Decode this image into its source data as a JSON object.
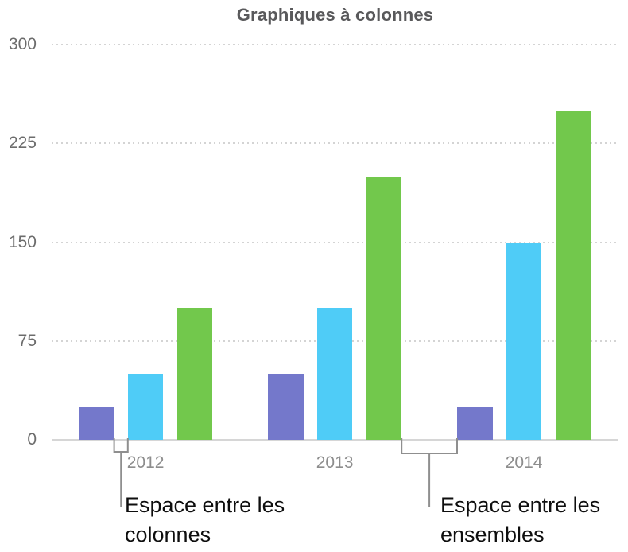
{
  "chart_data": {
    "type": "bar",
    "title": "Graphiques à colonnes",
    "categories": [
      "2012",
      "2013",
      "2014"
    ],
    "series": [
      {
        "name": "purple-series",
        "color": "#7478cb",
        "values": [
          25,
          50,
          25
        ]
      },
      {
        "name": "cyan-series",
        "color": "#4fccf7",
        "values": [
          50,
          100,
          150
        ]
      },
      {
        "name": "green-series",
        "color": "#72c84c",
        "values": [
          100,
          200,
          250
        ]
      }
    ],
    "yticks": [
      0,
      75,
      150,
      225,
      300
    ],
    "ylim": [
      0,
      300
    ],
    "xlabel": "",
    "ylabel": "",
    "grid": "horizontal-dotted",
    "legend": "none",
    "colors": {
      "grid_dotted": "#d4d4d4",
      "baseline": "#d6d6d6",
      "y_tick_label": "#6c6c6c",
      "x_tick_label": "#8d8d8d",
      "title": "#59595b",
      "bracket": "#8f8f8f",
      "annotation_text": "#0e0e0e"
    }
  },
  "annotations": [
    {
      "line1": "Espace entre les",
      "line2": "colonnes"
    },
    {
      "line1": "Espace entre les",
      "line2": "ensembles"
    }
  ]
}
